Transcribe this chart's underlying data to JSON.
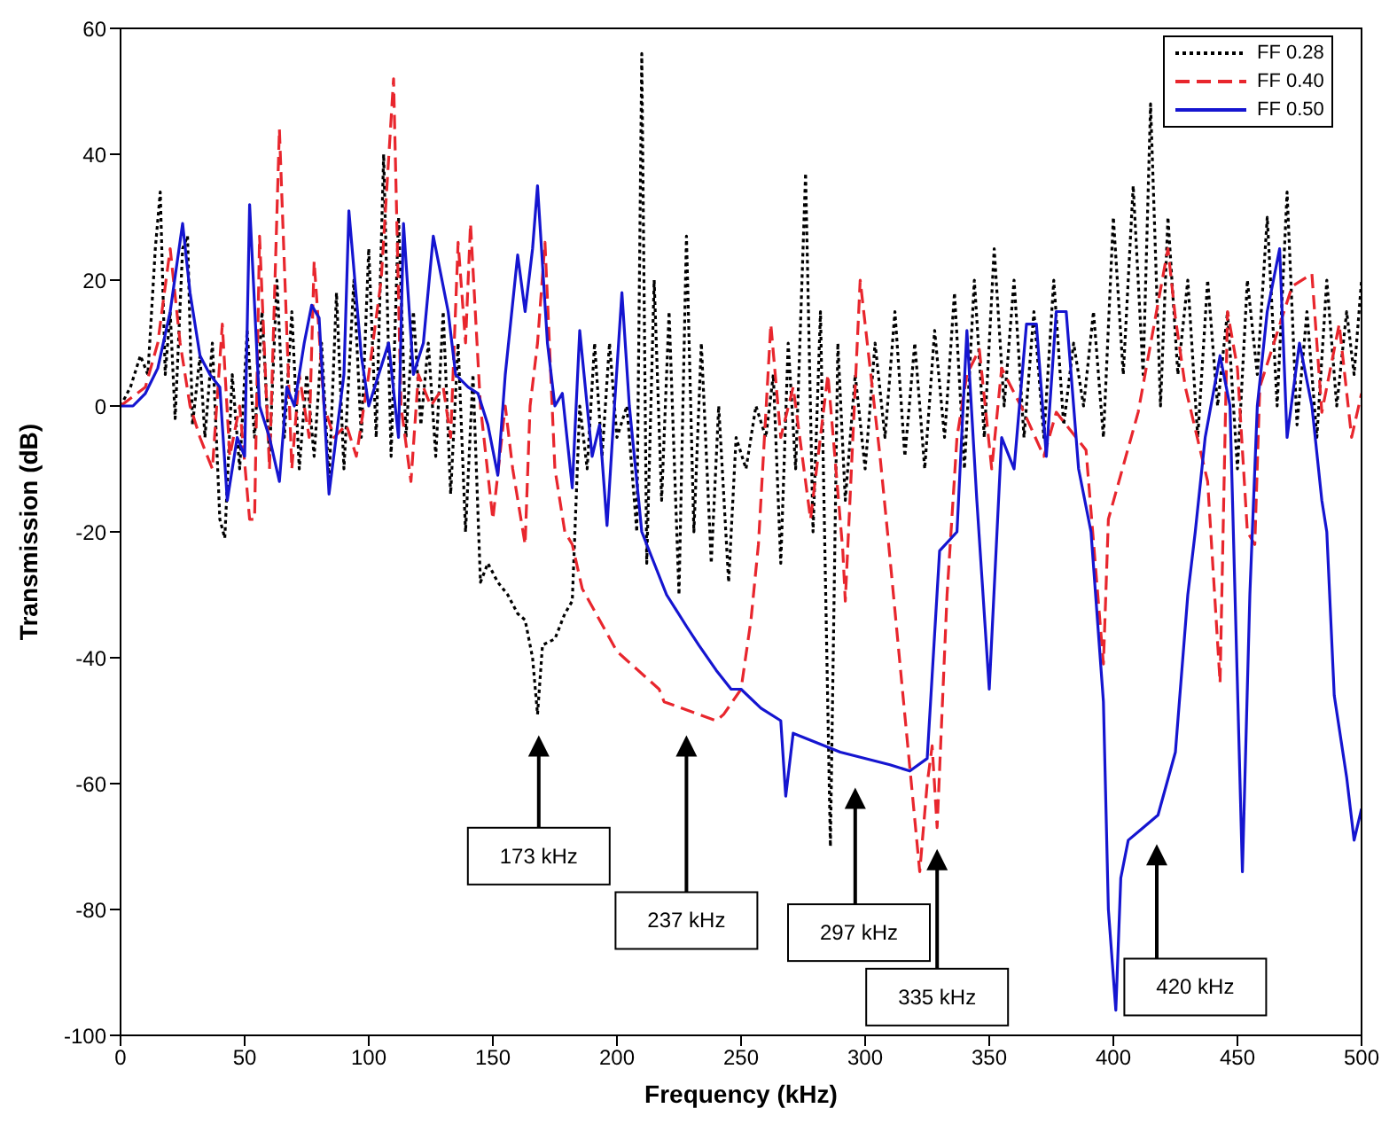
{
  "chart_data": {
    "type": "line",
    "xlabel": "Frequency (kHz)",
    "ylabel": "Transmission (dB)",
    "xlim": [
      0,
      500
    ],
    "xticks": [
      0,
      50,
      100,
      150,
      200,
      250,
      300,
      350,
      400,
      450,
      500
    ],
    "ylim": [
      -100,
      60
    ],
    "yticks": [
      -100,
      -80,
      -60,
      -40,
      -20,
      0,
      20,
      40,
      60
    ],
    "grid": false,
    "legend": "top right",
    "marker": "none",
    "series": [
      {
        "name": "FF 0.28",
        "color": "#000000",
        "line_style": "dotted",
        "x": [
          0,
          4,
          8,
          11,
          14,
          16,
          18,
          20,
          22,
          25,
          27,
          29,
          32,
          34,
          37,
          40,
          42,
          45,
          48,
          51,
          54,
          57,
          60,
          63,
          66,
          69,
          72,
          75,
          78,
          81,
          84,
          87,
          90,
          94,
          97,
          100,
          103,
          106,
          109,
          112,
          115,
          118,
          121,
          124,
          127,
          130,
          133,
          136,
          139,
          142,
          145,
          148,
          152,
          156,
          160,
          163,
          166,
          168,
          170,
          175,
          179,
          182,
          185,
          188,
          191,
          194,
          197,
          200,
          204,
          208,
          210,
          212,
          215,
          218,
          221,
          225,
          228,
          231,
          234,
          238,
          241,
          245,
          248,
          252,
          256,
          260,
          263,
          266,
          269,
          272,
          276,
          279,
          282,
          286,
          289,
          292,
          296,
          300,
          304,
          308,
          312,
          316,
          320,
          324,
          328,
          332,
          336,
          340,
          344,
          348,
          352,
          356,
          360,
          364,
          368,
          372,
          376,
          380,
          384,
          388,
          392,
          396,
          400,
          404,
          408,
          412,
          415,
          419,
          422,
          426,
          430,
          434,
          438,
          442,
          446,
          450,
          454,
          458,
          462,
          466,
          470,
          474,
          478,
          482,
          486,
          490,
          494,
          497,
          500
        ],
        "values": [
          0,
          3,
          8,
          5,
          25,
          34,
          5,
          15,
          -2,
          25,
          27,
          -3,
          8,
          -5,
          10,
          -18,
          -21,
          5,
          -10,
          12,
          -5,
          15,
          -8,
          20,
          -5,
          15,
          -10,
          5,
          -8,
          10,
          -12,
          18,
          -10,
          20,
          -5,
          25,
          -5,
          40,
          -8,
          30,
          -5,
          15,
          -3,
          10,
          -8,
          15,
          -14,
          10,
          -20,
          5,
          -28,
          -25,
          -28,
          -30,
          -33,
          -34,
          -40,
          -49,
          -38,
          -37,
          -33,
          -31,
          0,
          -10,
          10,
          -8,
          10,
          -5,
          0,
          -20,
          56,
          -25,
          20,
          -15,
          15,
          -30,
          27,
          -20,
          10,
          -25,
          0,
          -28,
          -5,
          -10,
          0,
          -5,
          5,
          -25,
          10,
          -10,
          37,
          -20,
          15,
          -70,
          10,
          -15,
          5,
          -10,
          10,
          -5,
          15,
          -8,
          10,
          -10,
          12,
          -5,
          18,
          -10,
          20,
          -5,
          25,
          0,
          20,
          -5,
          15,
          -5,
          20,
          -3,
          10,
          0,
          15,
          -5,
          30,
          5,
          35,
          5,
          48,
          0,
          30,
          5,
          20,
          -5,
          20,
          0,
          15,
          -10,
          20,
          5,
          30,
          0,
          34,
          -3,
          15,
          -5,
          20,
          0,
          15,
          5,
          20
        ]
      },
      {
        "name": "FF 0.40",
        "color": "#e8262d",
        "line_style": "dashed",
        "x": [
          0,
          10,
          15,
          20,
          24,
          28,
          32,
          37,
          41,
          44,
          48,
          52,
          54,
          56,
          60,
          64,
          69,
          72,
          76,
          78,
          82,
          86,
          91,
          95,
          100,
          105,
          110,
          113,
          117,
          120,
          125,
          130,
          133,
          136,
          139,
          141,
          145,
          150,
          155,
          158,
          163,
          165,
          168,
          171,
          175,
          179,
          182,
          186,
          200,
          217,
          219,
          240,
          243,
          250,
          254,
          257,
          262,
          266,
          271,
          278,
          285,
          291,
          292,
          298,
          306,
          309,
          315,
          322,
          325,
          327,
          329,
          333,
          337,
          341,
          346,
          351,
          355,
          364,
          372,
          377,
          389,
          396,
          398,
          410,
          422,
          425,
          429,
          438,
          443,
          446,
          450,
          454,
          457,
          459,
          472,
          480,
          484,
          491,
          496,
          500
        ],
        "values": [
          0,
          3,
          10,
          25,
          10,
          0,
          -5,
          -10,
          13,
          -8,
          0,
          -18,
          -18,
          27,
          -10,
          44,
          -10,
          5,
          -5,
          23,
          0,
          -5,
          -3,
          -8,
          5,
          20,
          52,
          0,
          -12,
          5,
          0,
          3,
          -5,
          26,
          10,
          29,
          0,
          -18,
          0,
          -10,
          -22,
          0,
          10,
          26,
          -10,
          -20,
          -22,
          -29,
          -39,
          -45,
          -47,
          -50,
          -49,
          -45,
          -34,
          -22,
          13,
          -5,
          3,
          -18,
          5,
          -23,
          -31,
          20,
          -8,
          -20,
          -45,
          -74,
          -60,
          -54,
          -67,
          -30,
          -5,
          5,
          9,
          -10,
          6,
          -1,
          -8,
          -1,
          -7,
          -41,
          -18,
          -1,
          25,
          14,
          3,
          -12,
          -44,
          15,
          6,
          -20,
          -22,
          3,
          19,
          21,
          -1,
          13,
          -5,
          2
        ]
      },
      {
        "name": "FF 0.50",
        "color": "#1515d0",
        "line_style": "solid",
        "x": [
          0,
          5,
          10,
          15,
          20,
          25,
          28,
          32,
          36,
          40,
          43,
          47,
          50,
          52,
          56,
          60,
          64,
          67,
          70,
          74,
          77,
          80,
          84,
          90,
          92,
          97,
          100,
          104,
          108,
          112,
          114,
          118,
          122,
          126,
          132,
          135,
          140,
          144,
          148,
          152,
          155,
          160,
          163,
          166,
          168,
          172,
          175,
          178,
          182,
          185,
          188,
          190,
          193,
          196,
          199,
          202,
          205,
          210,
          220,
          228,
          233,
          240,
          246,
          250,
          258,
          266,
          268,
          271,
          290,
          310,
          318,
          325,
          330,
          337,
          341,
          345,
          350,
          355,
          360,
          365,
          369,
          373,
          377,
          381,
          386,
          391,
          396,
          398,
          401,
          403,
          406,
          412,
          418,
          425,
          430,
          433,
          437,
          443,
          447,
          452,
          455,
          458,
          462,
          467,
          470,
          475,
          480,
          484,
          486,
          489,
          494,
          497,
          500
        ],
        "values": [
          0,
          0,
          2,
          6,
          15,
          29,
          18,
          8,
          5,
          3,
          -15,
          -5,
          -8,
          32,
          0,
          -5,
          -12,
          3,
          0,
          10,
          16,
          14,
          -14,
          5,
          31,
          8,
          0,
          5,
          10,
          -5,
          29,
          5,
          10,
          27,
          15,
          5,
          3,
          2,
          -3,
          -11,
          5,
          24,
          15,
          25,
          35,
          10,
          0,
          2,
          -13,
          12,
          0,
          -8,
          -3,
          -19,
          0,
          18,
          0,
          -20,
          -30,
          -35,
          -38,
          -42,
          -45,
          -45,
          -48,
          -50,
          -62,
          -52,
          -55,
          -57,
          -58,
          -56,
          -23,
          -20,
          12,
          -15,
          -45,
          -5,
          -10,
          13,
          13,
          -8,
          15,
          15,
          -10,
          -20,
          -47,
          -80,
          -96,
          -75,
          -69,
          -67,
          -65,
          -55,
          -30,
          -20,
          -5,
          8,
          0,
          -74,
          -30,
          0,
          15,
          25,
          -5,
          10,
          0,
          -15,
          -20,
          -46,
          -59,
          -69,
          -64
        ]
      }
    ],
    "annotations": [
      "173 kHz",
      "237 kHz",
      "297 kHz",
      "335 kHz",
      "420 kHz"
    ]
  }
}
